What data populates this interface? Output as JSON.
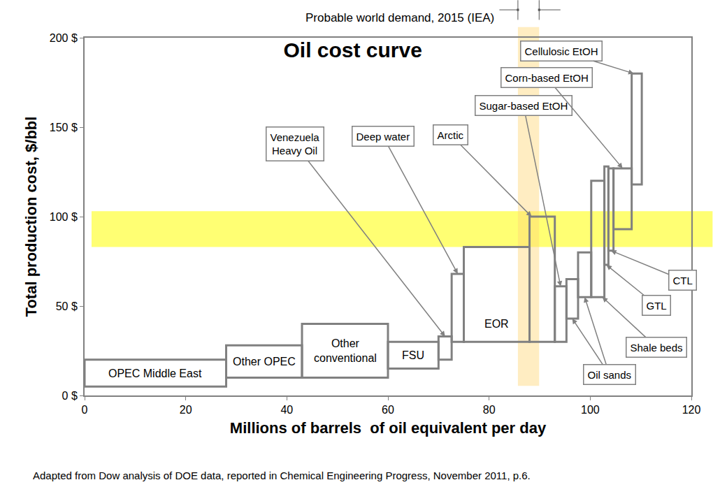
{
  "chart_data": {
    "type": "bar",
    "title": "Oil cost curve",
    "x_label": "Millions of barrels  of oil equivalent per day",
    "y_label": "Total production cost, $/bbl",
    "categories": [
      "OPEC Middle East",
      "Other OPEC",
      "Other\nconventional",
      "FSU",
      "Venezuela\nHeavy Oil",
      "Deep water",
      "EOR",
      "Arctic",
      "Sugar-based EtOH",
      "Oil sands",
      "Oil sands",
      "Shale beds",
      "GTL",
      "CTL",
      "Corn-based EtOH",
      "Cellulosic EtOH"
    ],
    "x_start": [
      0,
      28,
      43,
      60,
      70,
      72.6,
      75,
      88,
      93,
      95.3,
      97.6,
      100.2,
      102.8,
      103.6,
      104.6,
      108.2
    ],
    "x_end": [
      28,
      43,
      60,
      70,
      72.6,
      75,
      88,
      93,
      95.3,
      97.6,
      100.2,
      102.8,
      103.6,
      104.6,
      108.2,
      110.2
    ],
    "low": [
      5,
      10,
      10,
      15,
      20,
      30,
      30,
      30,
      30,
      43,
      55,
      55,
      73,
      81,
      93,
      118
    ],
    "high": [
      20,
      28,
      40,
      30,
      33,
      68,
      83,
      100,
      61,
      65,
      80,
      120,
      128,
      127,
      127,
      180
    ],
    "color": "#808080",
    "xlim": [
      0,
      120
    ],
    "xticks": [
      0,
      20,
      40,
      60,
      80,
      100,
      120
    ],
    "ylim": [
      0,
      200
    ],
    "yticks": [
      {
        "value": 0,
        "label": "0 $"
      },
      {
        "value": 50,
        "label": "50 $"
      },
      {
        "value": 100,
        "label": "100 $"
      },
      {
        "value": 150,
        "label": "150 $"
      },
      {
        "value": 200,
        "label": "200 $"
      }
    ],
    "grid": false,
    "price_band": {
      "low": 83,
      "high": 103
    },
    "demand_band": {
      "label": "Probable world demand, 2015 (IEA)",
      "x_start": 85.7,
      "x_end": 89.9
    },
    "note": "Adapted from Dow analysis of DOE data, reported in Chemical Engineering Progress, November 2011, p.6."
  }
}
